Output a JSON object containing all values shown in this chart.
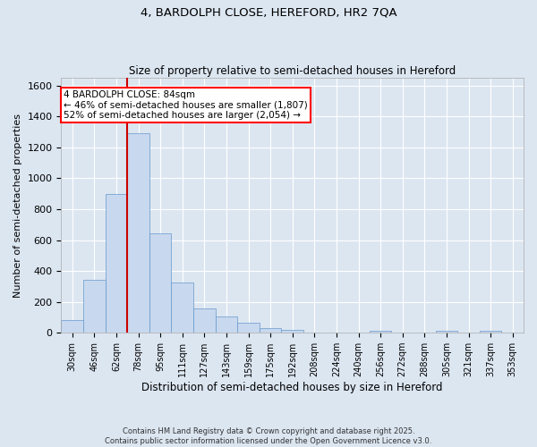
{
  "title": "4, BARDOLPH CLOSE, HEREFORD, HR2 7QA",
  "subtitle": "Size of property relative to semi-detached houses in Hereford",
  "xlabel": "Distribution of semi-detached houses by size in Hereford",
  "ylabel": "Number of semi-detached properties",
  "bar_color": "#c8d8ee",
  "bar_edge_color": "#6699cc",
  "background_color": "#dce6f1",
  "annotation_text": "4 BARDOLPH CLOSE: 84sqm\n← 46% of semi-detached houses are smaller (1,807)\n52% of semi-detached houses are larger (2,054) →",
  "vline_color": "#cc0000",
  "categories": [
    "30sqm",
    "46sqm",
    "62sqm",
    "78sqm",
    "95sqm",
    "111sqm",
    "127sqm",
    "143sqm",
    "159sqm",
    "175sqm",
    "192sqm",
    "208sqm",
    "224sqm",
    "240sqm",
    "256sqm",
    "272sqm",
    "288sqm",
    "305sqm",
    "321sqm",
    "337sqm",
    "353sqm"
  ],
  "bar_values": [
    85,
    340,
    900,
    1290,
    645,
    325,
    155,
    105,
    65,
    30,
    20,
    0,
    0,
    0,
    15,
    0,
    0,
    15,
    0,
    15,
    0
  ],
  "ylim": [
    0,
    1650
  ],
  "yticks": [
    0,
    200,
    400,
    600,
    800,
    1000,
    1200,
    1400,
    1600
  ],
  "footnote": "Contains HM Land Registry data © Crown copyright and database right 2025.\nContains public sector information licensed under the Open Government Licence v3.0."
}
